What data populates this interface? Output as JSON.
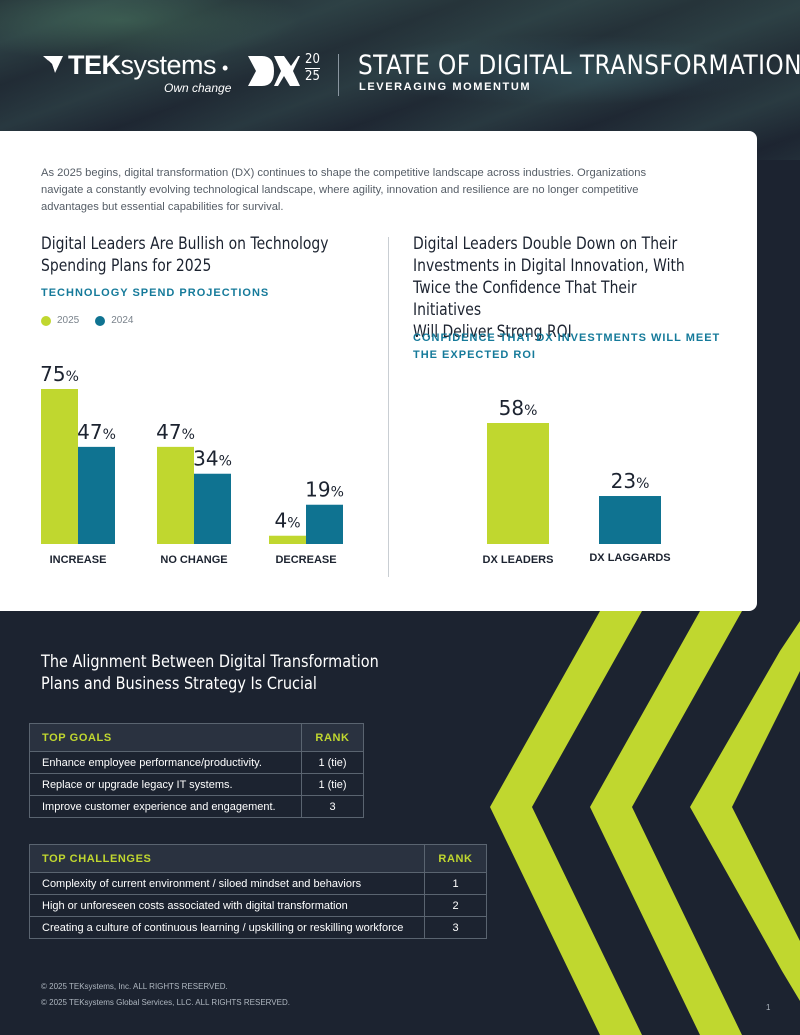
{
  "header": {
    "brand_name_bold": "TEK",
    "brand_name_light": "systems",
    "brand_tagline": "Own change",
    "separator": "•",
    "dx_mark": "DX",
    "dx_year_top": "20",
    "dx_year_bottom": "25",
    "title": "STATE OF DIGITAL TRANSFORMATION",
    "subtitle": "LEVERAGING MOMENTUM"
  },
  "intro": "As 2025 begins, digital transformation (DX) continues to shape the competitive landscape across industries. Organizations navigate a constantly evolving technological landscape, where agility, innovation and resilience are no longer competitive advantages but essential capabilities for survival.",
  "left_section": {
    "title_line1": "Digital Leaders Are Bullish on Technology",
    "title_line2": "Spending Plans for 2025",
    "subtitle": "TECHNOLOGY SPEND PROJECTIONS",
    "legend": [
      {
        "label": "2025",
        "color": "#c0d72f"
      },
      {
        "label": "2024",
        "color": "#0f7391"
      }
    ]
  },
  "right_section": {
    "title_line1": "Digital Leaders Double Down on Their",
    "title_line2": "Investments in Digital Innovation, With",
    "title_line3": "Twice the Confidence That Their Initiatives",
    "title_line4": "Will Deliver Strong ROI",
    "subtitle_line1": "CONFIDENCE THAT DX INVESTMENTS WILL MEET",
    "subtitle_line2": "THE EXPECTED ROI"
  },
  "chart_data": [
    {
      "type": "bar",
      "title": "TECHNOLOGY SPEND PROJECTIONS",
      "categories": [
        "INCREASE",
        "NO CHANGE",
        "DECREASE"
      ],
      "series": [
        {
          "name": "2025",
          "values": [
            75,
            47,
            4
          ],
          "color": "#c0d72f"
        },
        {
          "name": "2024",
          "values": [
            47,
            34,
            19
          ],
          "color": "#0f7391"
        }
      ],
      "unit": "%",
      "ylim": [
        0,
        75
      ],
      "grid": false,
      "legend": "top-left"
    },
    {
      "type": "bar",
      "title": "CONFIDENCE THAT DX INVESTMENTS WILL MEET THE EXPECTED ROI",
      "categories": [
        "DX LEADERS",
        "DX LAGGARDS"
      ],
      "values": [
        58,
        23
      ],
      "colors": [
        "#c0d72f",
        "#0f7391"
      ],
      "unit": "%",
      "ylim": [
        0,
        58
      ],
      "grid": false
    }
  ],
  "alignment": {
    "title_line1": "The Alignment Between Digital Transformation",
    "title_line2": "Plans and Business Strategy Is Crucial"
  },
  "goals_table": {
    "header": "TOP GOALS",
    "rank_header": "RANK",
    "rows": [
      {
        "item": "Enhance employee performance/productivity.",
        "rank": "1 (tie)"
      },
      {
        "item": "Replace or upgrade legacy IT systems.",
        "rank": "1 (tie)"
      },
      {
        "item": "Improve customer experience and engagement.",
        "rank": "3"
      }
    ]
  },
  "challenges_table": {
    "header": "TOP CHALLENGES",
    "rank_header": "RANK",
    "rows": [
      {
        "item": "Complexity of current environment / siloed mindset and behaviors",
        "rank": "1"
      },
      {
        "item": "High or unforeseen costs associated with digital transformation",
        "rank": "2"
      },
      {
        "item": "Creating a culture of continuous learning / upskilling or reskilling workforce",
        "rank": "3"
      }
    ]
  },
  "footer": {
    "copyright1": "© 2025 TEKsystems, Inc. ALL RIGHTS RESERVED.",
    "copyright2": "© 2025 TEKsystems Global Services, LLC. ALL RIGHTS RESERVED.",
    "page_number": "1"
  },
  "colors": {
    "accent_lime": "#c0d72f",
    "accent_teal": "#0f7391",
    "navy": "#1c2330"
  }
}
